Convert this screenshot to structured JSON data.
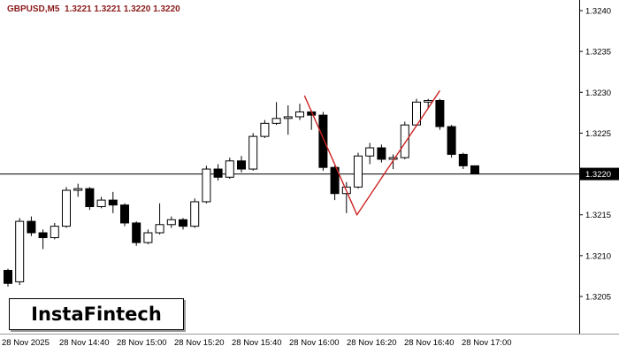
{
  "quote_header": {
    "text": "GBPUSD,M5  1.3221 1.3221 1.3220 1.3220",
    "color": "#8b1a1a"
  },
  "logo": {
    "text": "InstaFintech"
  },
  "chart_data": {
    "type": "candlestick",
    "symbol": "GBPUSD",
    "timeframe": "M5",
    "grid": false,
    "background_color": "#ffffff",
    "bull_color": "#ffffff",
    "bear_color": "#000000",
    "outline_color": "#000000",
    "indicator_color": "#cc2222",
    "axis_color": "#000000",
    "time_axis_line_color": "#9b9b9b",
    "price_range": [
      1.3205,
      1.324
    ],
    "current_price": 1.322,
    "current_price_label": "1.3220",
    "price_ticks": [
      {
        "label": "1.3240",
        "value": 1.324
      },
      {
        "label": "1.3235",
        "value": 1.3235
      },
      {
        "label": "1.3230",
        "value": 1.323
      },
      {
        "label": "1.3225",
        "value": 1.3225
      },
      {
        "label": "1.3215",
        "value": 1.3215
      },
      {
        "label": "1.3210",
        "value": 1.321
      },
      {
        "label": "1.3205",
        "value": 1.3205
      }
    ],
    "time_labels": [
      "28 Nov 2025",
      "28 Nov 14:40",
      "28 Nov 15:00",
      "28 Nov 15:20",
      "28 Nov 15:40",
      "28 Nov 16:00",
      "28 Nov 16:20",
      "28 Nov 16:40",
      "28 Nov 17:00"
    ],
    "candles": [
      [
        1.32082,
        1.32084,
        1.32062,
        1.32066
      ],
      [
        1.32068,
        1.32146,
        1.32064,
        1.32142
      ],
      [
        1.32142,
        1.32148,
        1.32124,
        1.32128
      ],
      [
        1.32128,
        1.32132,
        1.32108,
        1.32122
      ],
      [
        1.32122,
        1.3214,
        1.3212,
        1.32136
      ],
      [
        1.32136,
        1.32184,
        1.32134,
        1.3218
      ],
      [
        1.3218,
        1.32188,
        1.32172,
        1.32182
      ],
      [
        1.32182,
        1.32184,
        1.32156,
        1.3216
      ],
      [
        1.3216,
        1.32172,
        1.32158,
        1.32168
      ],
      [
        1.32168,
        1.32178,
        1.32152,
        1.32162
      ],
      [
        1.32162,
        1.32164,
        1.32136,
        1.3214
      ],
      [
        1.3214,
        1.32142,
        1.32112,
        1.32116
      ],
      [
        1.32116,
        1.32132,
        1.32114,
        1.32128
      ],
      [
        1.32128,
        1.32164,
        1.32126,
        1.32138
      ],
      [
        1.32138,
        1.32148,
        1.32134,
        1.32144
      ],
      [
        1.32144,
        1.32146,
        1.32132,
        1.32136
      ],
      [
        1.32136,
        1.3217,
        1.32134,
        1.32166
      ],
      [
        1.32166,
        1.3221,
        1.32164,
        1.32206
      ],
      [
        1.32206,
        1.32212,
        1.32192,
        1.32196
      ],
      [
        1.32196,
        1.3222,
        1.32194,
        1.32216
      ],
      [
        1.32216,
        1.32222,
        1.32202,
        1.32206
      ],
      [
        1.32206,
        1.3225,
        1.32204,
        1.32246
      ],
      [
        1.32246,
        1.32266,
        1.32244,
        1.32262
      ],
      [
        1.32262,
        1.32288,
        1.3226,
        1.32268
      ],
      [
        1.32268,
        1.32284,
        1.32248,
        1.3227
      ],
      [
        1.3227,
        1.32286,
        1.32266,
        1.32276
      ],
      [
        1.32276,
        1.32278,
        1.32254,
        1.32272
      ],
      [
        1.32272,
        1.32276,
        1.32204,
        1.32208
      ],
      [
        1.32208,
        1.3221,
        1.32168,
        1.32176
      ],
      [
        1.32176,
        1.3219,
        1.32152,
        1.32184
      ],
      [
        1.32184,
        1.32226,
        1.32182,
        1.32222
      ],
      [
        1.32222,
        1.32238,
        1.32212,
        1.32232
      ],
      [
        1.32232,
        1.32236,
        1.32214,
        1.32218
      ],
      [
        1.32218,
        1.32224,
        1.32206,
        1.3222
      ],
      [
        1.3222,
        1.32264,
        1.32218,
        1.3226
      ],
      [
        1.3226,
        1.32292,
        1.32258,
        1.32288
      ],
      [
        1.32288,
        1.32292,
        1.3228,
        1.3229
      ],
      [
        1.3229,
        1.32292,
        1.32254,
        1.32258
      ],
      [
        1.32258,
        1.3226,
        1.3222,
        1.32224
      ],
      [
        1.32224,
        1.32226,
        1.32206,
        1.3221
      ],
      [
        1.3221,
        1.3221,
        1.322,
        1.322
      ]
    ],
    "zigzag": [
      {
        "index": 25.4,
        "price": 1.32296
      },
      {
        "index": 29.9,
        "price": 1.3215
      },
      {
        "index": 37.0,
        "price": 1.32302
      }
    ]
  }
}
